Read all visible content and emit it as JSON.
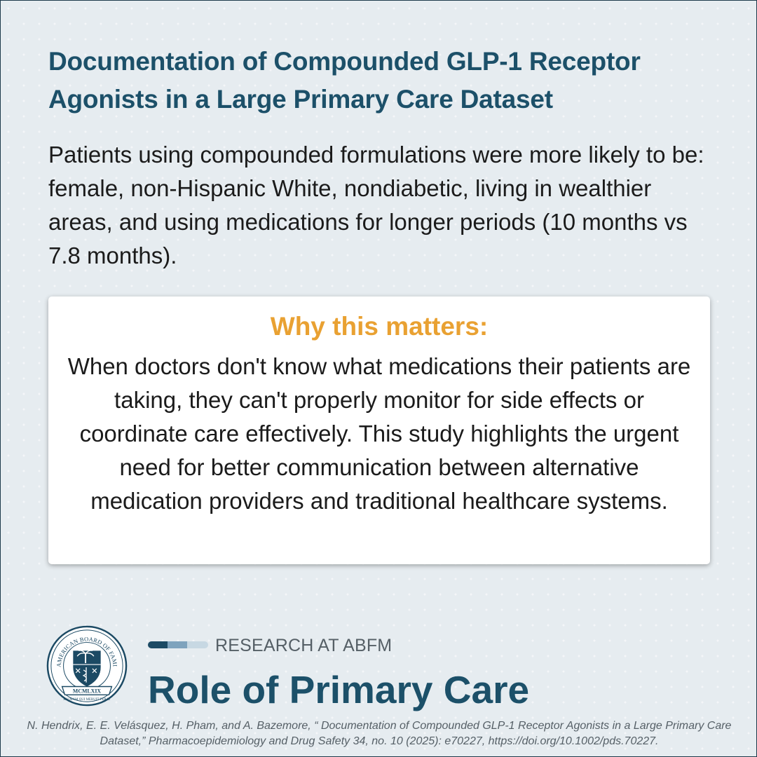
{
  "title": "Documentation of Compounded GLP-1 Receptor Agonists in a Large Primary Care Dataset",
  "summary": "Patients using compounded formulations were more likely to be: female, non-Hispanic White, nondiabetic, living in wealthier areas, and using medications for longer periods (10 months vs 7.8 months).",
  "callout": {
    "heading": "Why this matters:",
    "text": "When doctors don't know what medications their patients are taking, they can't properly monitor for side effects or coordinate care effectively. This study highlights the urgent need for better communication between alternative medication providers and traditional healthcare systems."
  },
  "branding": {
    "label": "RESEARCH AT ABFM",
    "title": "Role of Primary Care",
    "seal_ring_text": "AMERICAN BOARD OF FAMILY MEDICINE",
    "seal_ribbon_text": "MCMLXIX",
    "seal_motto": "PALMAM QUI MERUIT FERAT",
    "seal_icon": "abfm-seal-icon",
    "bar_colors": [
      "#1c4a64",
      "#7fa3bd",
      "#c7d8e3"
    ]
  },
  "citation": "N. Hendrix, E. E. Velásquez, H. Pham, and A. Bazemore, “ Documentation of Compounded GLP-1 Receptor Agonists in a Large Primary Care Dataset,” Pharmacoepidemiology and Drug Safety 34, no. 10 (2025): e70227, https://doi.org/10.1002/pds.70227.",
  "colors": {
    "background": "#e6ecf0",
    "title": "#1c5069",
    "accent": "#e9a132",
    "text": "#1b1b1b",
    "muted": "#555f66"
  }
}
